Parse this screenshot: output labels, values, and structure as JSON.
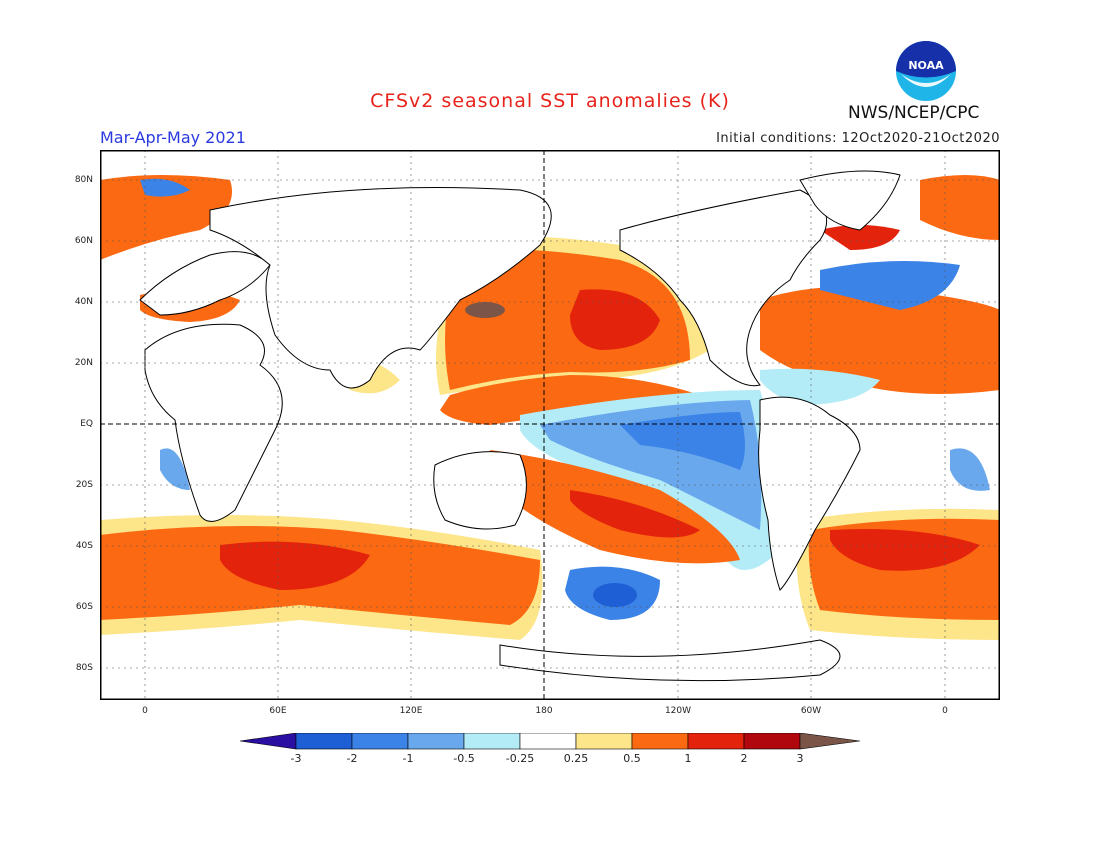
{
  "title": "CFSv2 seasonal SST anomalies (K)",
  "season": "Mar-Apr-May 2021",
  "initial_conditions": "Initial conditions: 12Oct2020-21Oct2020",
  "agency": "NWS/NCEP/CPC",
  "logo": {
    "text": "NOAA",
    "icon": "noaa-logo-icon"
  },
  "lat_labels": [
    "80N",
    "60N",
    "40N",
    "20N",
    "EQ",
    "20S",
    "40S",
    "60S",
    "80S"
  ],
  "lon_labels": [
    "0",
    "60E",
    "120E",
    "180",
    "120W",
    "60W",
    "0"
  ],
  "colorbar": {
    "labels": [
      "-3",
      "-2",
      "-1",
      "-0.5",
      "-0.25",
      "0.25",
      "0.5",
      "1",
      "2",
      "3"
    ],
    "colors": [
      "#2b0fa3",
      "#1f5fd6",
      "#3b83e6",
      "#6aa8ee",
      "#b3ecf6",
      "#ffffff",
      "#fde58a",
      "#fb6a12",
      "#e4230c",
      "#b0060e",
      "#7b5548"
    ]
  }
}
